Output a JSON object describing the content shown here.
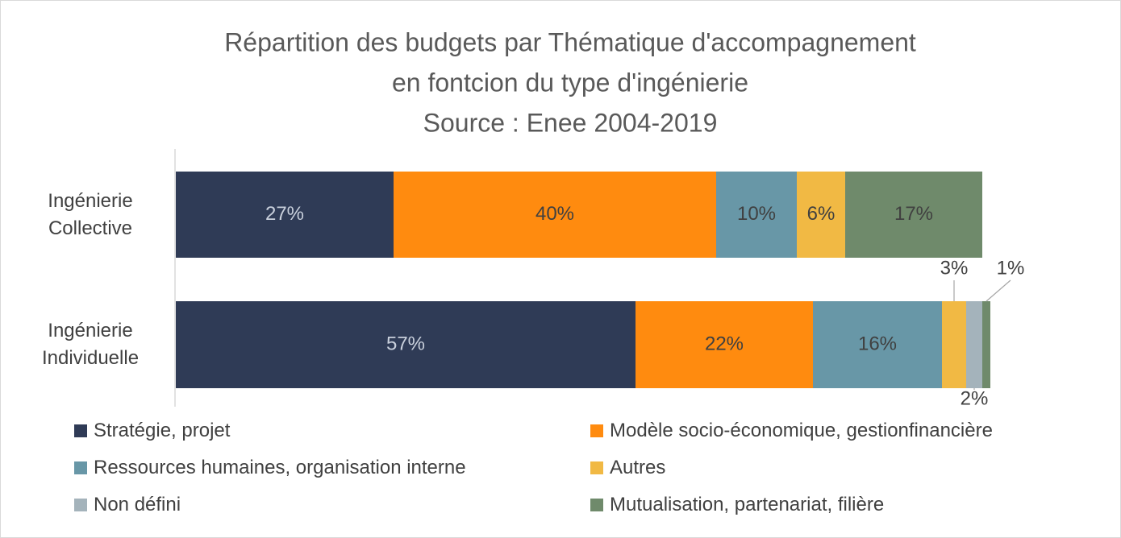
{
  "chart_data": {
    "type": "stacked-bar-horizontal",
    "title": "Répartition des budgets par Thématique d'accompagnement en fontcion du type d'ingénierie Source : Enee 2004-2019",
    "title_lines": [
      "Répartition des budgets par Thématique d'accompagnement",
      "en fontcion du type d'ingénierie",
      "Source : Enee 2004-2019"
    ],
    "categories": [
      "Ingénierie Collective",
      "Ingénierie Individuelle"
    ],
    "series": [
      {
        "name": "Stratégie, projet",
        "color": "#2f3b56",
        "values": [
          27,
          57
        ],
        "value_labels": [
          "27%",
          "57%"
        ]
      },
      {
        "name": "Modèle socio-économique, gestionfinancière",
        "color": "#ff8b0f",
        "values": [
          40,
          22
        ],
        "value_labels": [
          "40%",
          "22%"
        ]
      },
      {
        "name": "Ressources humaines, organisation interne",
        "color": "#6897a7",
        "values": [
          10,
          16
        ],
        "value_labels": [
          "10%",
          "16%"
        ]
      },
      {
        "name": "Autres",
        "color": "#f1b944",
        "values": [
          6,
          3
        ],
        "value_labels": [
          "6%",
          "3%"
        ]
      },
      {
        "name": "Non défini",
        "color": "#a4b3bb",
        "values": [
          null,
          2
        ],
        "value_labels": [
          null,
          "2%"
        ]
      },
      {
        "name": "Mutualisation, partenariat, filière",
        "color": "#6f8a6b",
        "values": [
          17,
          1
        ],
        "value_labels": [
          "17%",
          "1%"
        ]
      }
    ]
  }
}
